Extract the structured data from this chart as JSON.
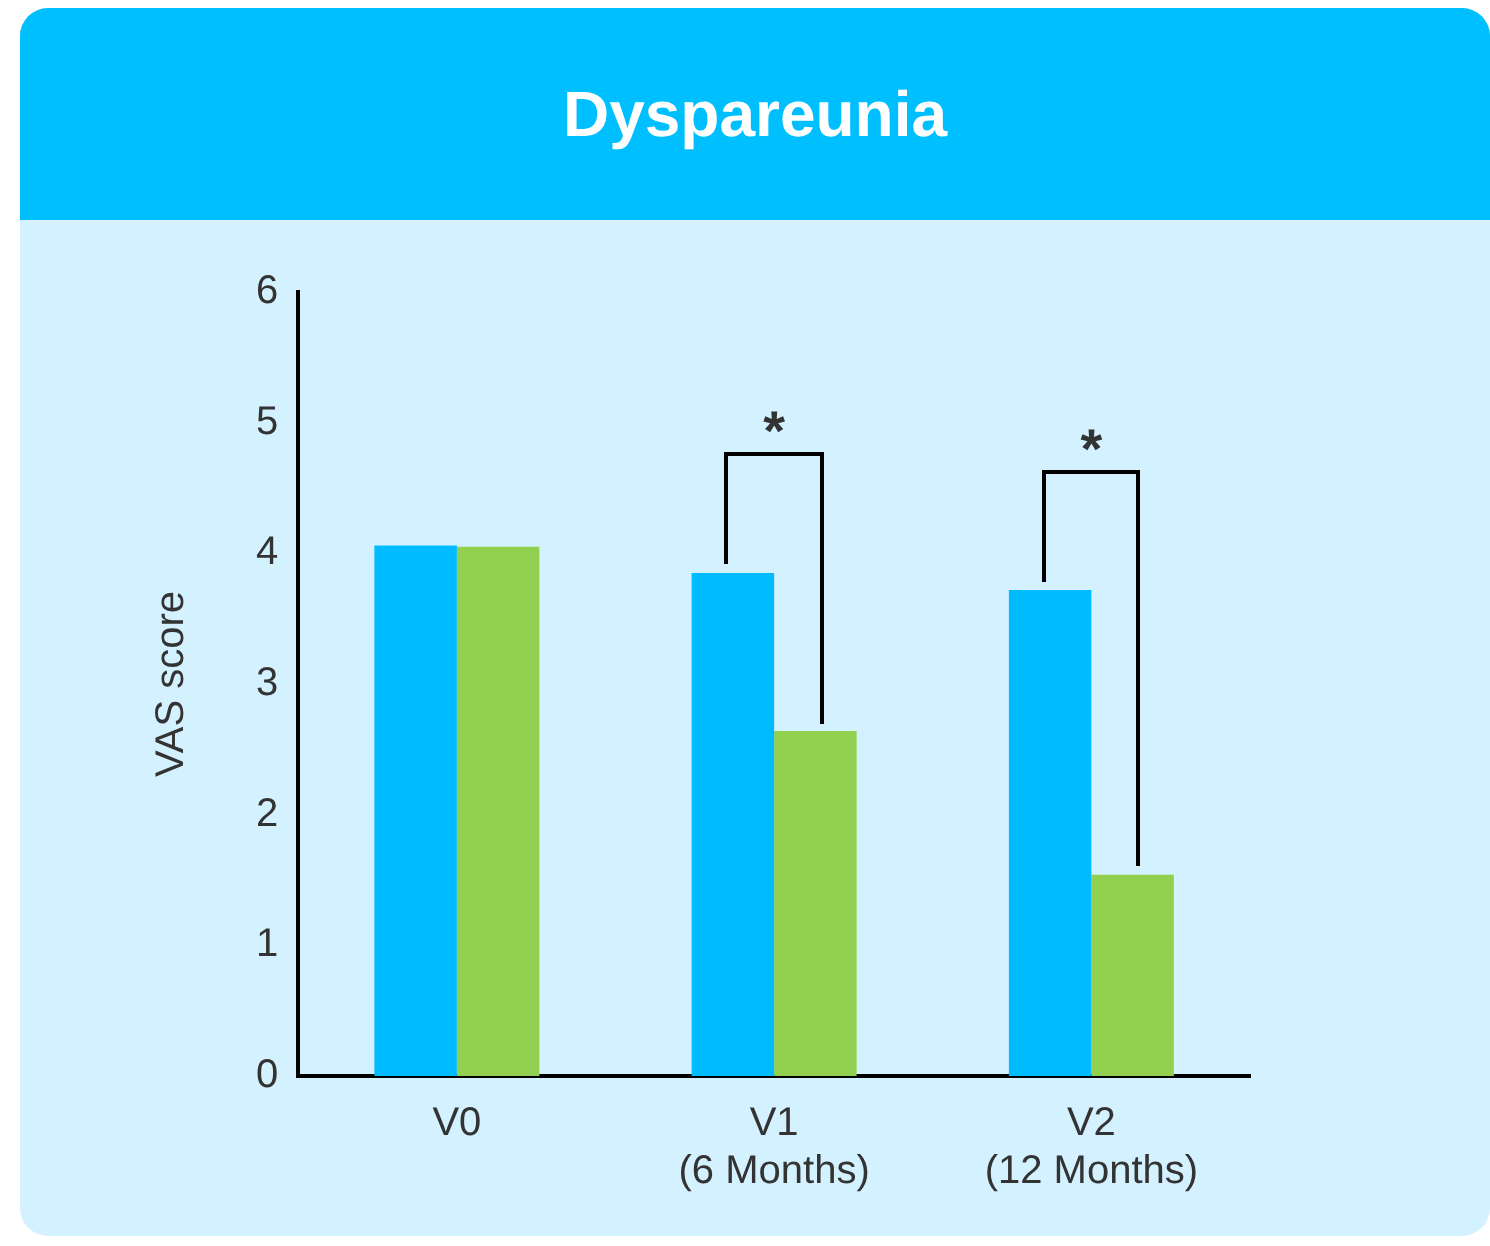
{
  "chart_data": {
    "type": "bar",
    "title": "Dyspareunia",
    "ylabel": "VAS score",
    "categories": [
      "V0",
      "V1\n(6 Months)",
      "V2\n(12 Months)"
    ],
    "series": [
      {
        "color": "#00bbff",
        "values": [
          4.06,
          3.85,
          3.72
        ]
      },
      {
        "color": "#92d050",
        "values": [
          4.05,
          2.64,
          1.54
        ]
      }
    ],
    "ylim": [
      0,
      6
    ],
    "yticks": [
      0,
      1,
      2,
      3,
      4,
      5,
      6
    ],
    "grid": false,
    "legend": false,
    "annotations": [
      "*",
      "*"
    ]
  }
}
